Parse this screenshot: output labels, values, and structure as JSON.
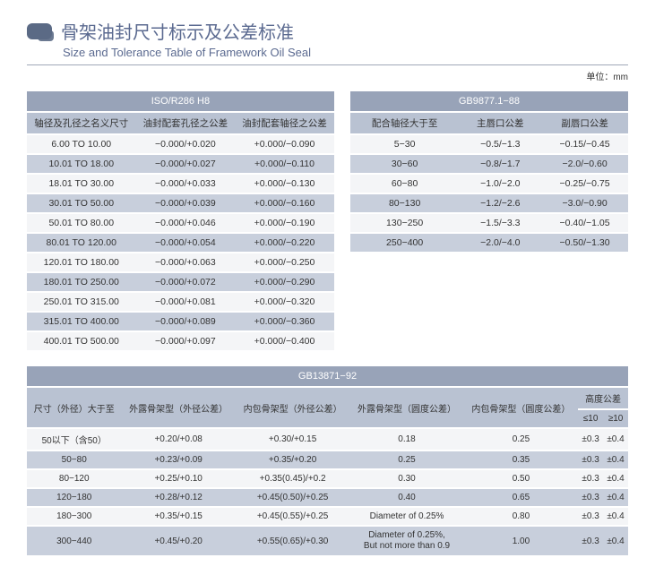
{
  "header": {
    "title_cn": "骨架油封尺寸标示及公差标准",
    "title_en": "Size and Tolerance Table of Framework Oil Seal",
    "unit_label": "单位：mm"
  },
  "table1": {
    "title": "ISO/R286 H8",
    "headers": [
      "轴径及孔径之名义尺寸",
      "油封配套孔径之公差",
      "油封配套轴径之公差"
    ],
    "rows": [
      [
        "6.00 TO 10.00",
        "−0.000/+0.020",
        "+0.000/−0.090"
      ],
      [
        "10.01 TO 18.00",
        "−0.000/+0.027",
        "+0.000/−0.110"
      ],
      [
        "18.01 TO 30.00",
        "−0.000/+0.033",
        "+0.000/−0.130"
      ],
      [
        "30.01 TO 50.00",
        "−0.000/+0.039",
        "+0.000/−0.160"
      ],
      [
        "50.01 TO 80.00",
        "−0.000/+0.046",
        "+0.000/−0.190"
      ],
      [
        "80.01 TO 120.00",
        "−0.000/+0.054",
        "+0.000/−0.220"
      ],
      [
        "120.01 TO 180.00",
        "−0.000/+0.063",
        "+0.000/−0.250"
      ],
      [
        "180.01 TO 250.00",
        "−0.000/+0.072",
        "+0.000/−0.290"
      ],
      [
        "250.01 TO 315.00",
        "−0.000/+0.081",
        "+0.000/−0.320"
      ],
      [
        "315.01 TO 400.00",
        "−0.000/+0.089",
        "+0.000/−0.360"
      ],
      [
        "400.01 TO 500.00",
        "−0.000/+0.097",
        "+0.000/−0.400"
      ]
    ]
  },
  "table2": {
    "title": "GB9877.1−88",
    "headers": [
      "配合轴径大于至",
      "主唇口公差",
      "副唇口公差"
    ],
    "rows": [
      [
        "5−30",
        "−0.5/−1.3",
        "−0.15/−0.45"
      ],
      [
        "30−60",
        "−0.8/−1.7",
        "−2.0/−0.60"
      ],
      [
        "60−80",
        "−1.0/−2.0",
        "−0.25/−0.75"
      ],
      [
        "80−130",
        "−1.2/−2.6",
        "−3.0/−0.90"
      ],
      [
        "130−250",
        "−1.5/−3.3",
        "−0.40/−1.05"
      ],
      [
        "250−400",
        "−2.0/−4.0",
        "−0.50/−1.30"
      ]
    ]
  },
  "table3": {
    "title": "GB13871−92",
    "header_group": "高度公差",
    "headers": [
      "尺寸（外径）大于至",
      "外露骨架型（外径公差）",
      "内包骨架型（外径公差）",
      "外露骨架型（圆度公差）",
      "内包骨架型（圆度公差）",
      "≤10",
      "≥10"
    ],
    "rows": [
      [
        "50以下（含50）",
        "+0.20/+0.08",
        "+0.30/+0.15",
        "0.18",
        "0.25",
        "±0.3",
        "±0.4"
      ],
      [
        "50−80",
        "+0.23/+0.09",
        "+0.35/+0.20",
        "0.25",
        "0.35",
        "±0.3",
        "±0.4"
      ],
      [
        "80−120",
        "+0.25/+0.10",
        "+0.35(0.45)/+0.2",
        "0.30",
        "0.50",
        "±0.3",
        "±0.4"
      ],
      [
        "120−180",
        "+0.28/+0.12",
        "+0.45(0.50)/+0.25",
        "0.40",
        "0.65",
        "±0.3",
        "±0.4"
      ],
      [
        "180−300",
        "+0.35/+0.15",
        "+0.45(0.55)/+0.25",
        "Diameter of 0.25%",
        "0.80",
        "±0.3",
        "±0.4"
      ],
      [
        "300−440",
        "+0.45/+0.20",
        "+0.55(0.65)/+0.30",
        "Diameter of 0.25%,\nBut not more than 0.9",
        "1.00",
        "±0.3",
        "±0.4"
      ]
    ]
  },
  "colors": {
    "header_bg": "#98a3b8",
    "subhead_bg": "#b9c2d2",
    "row_odd": "#f4f5f7",
    "row_even": "#c8cfdc",
    "accent": "#5b6a90"
  }
}
